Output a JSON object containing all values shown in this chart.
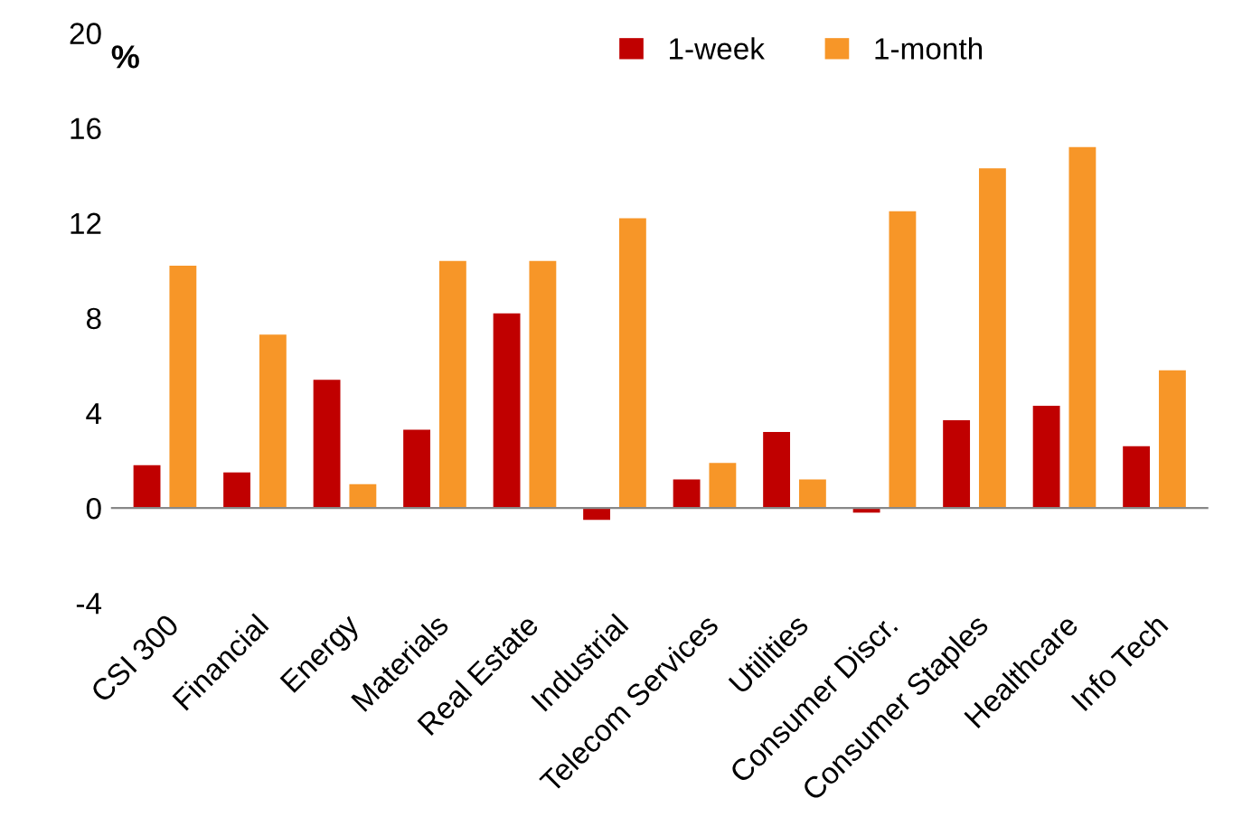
{
  "chart_data": {
    "type": "bar",
    "ylabel": "%",
    "categories": [
      "CSI 300",
      "Financial",
      "Energy",
      "Materials",
      "Real Estate",
      "Industrial",
      "Telecom Services",
      "Utilities",
      "Consumer Discr.",
      "Consumer Staples",
      "Healthcare",
      "Info Tech"
    ],
    "series": [
      {
        "name": "1-week",
        "color": "#c00000",
        "values": [
          1.8,
          1.5,
          5.4,
          3.3,
          8.2,
          -0.5,
          1.2,
          3.2,
          -0.2,
          3.7,
          4.3,
          2.6
        ]
      },
      {
        "name": "1-month",
        "color": "#f79628",
        "values": [
          10.2,
          7.3,
          1.0,
          10.4,
          10.4,
          12.2,
          1.9,
          1.2,
          12.5,
          14.3,
          15.2,
          5.8
        ]
      }
    ],
    "ref_lines": [
      {
        "axis": "y",
        "value": 0,
        "color": "#888888"
      }
    ],
    "ylim": [
      -4,
      20
    ],
    "yticks": [
      -4,
      0,
      4,
      8,
      12,
      16,
      20
    ],
    "grid": false,
    "legend": "top right"
  }
}
